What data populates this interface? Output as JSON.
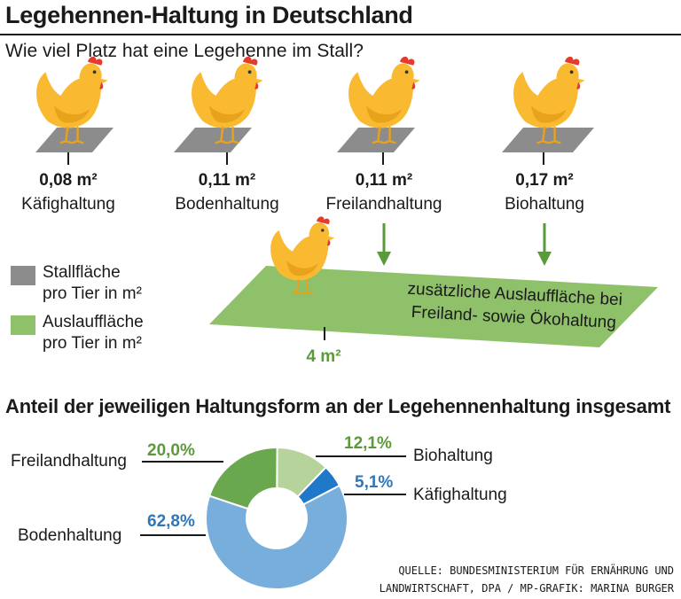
{
  "title": "Legehennen-Haltung in Deutschland",
  "subtitle": "Wie viel Platz hat eine Legehenne im Stall?",
  "husbandry": [
    {
      "area": "0,08 m²",
      "name": "Käfighaltung"
    },
    {
      "area": "0,11 m²",
      "name": "Bodenhaltung"
    },
    {
      "area": "0,11 m²",
      "name": "Freilandhaltung"
    },
    {
      "area": "0,17 m²",
      "name": "Biohaltung"
    }
  ],
  "outdoor": {
    "text_line1": "zusätzliche Auslauffläche bei",
    "text_line2": "Freiland- sowie Ökohaltung",
    "area": "4 m²"
  },
  "legend": [
    {
      "line1": "Stallfläche",
      "line2": "pro Tier in m²",
      "color": "#8c8c8c"
    },
    {
      "line1": "Auslauffläche",
      "line2": "pro Tier in m²",
      "color": "#8fc06a"
    }
  ],
  "section_title": "Anteil der jeweiligen Haltungsform an der Legehennenhaltung insgesamt",
  "chart_data": {
    "type": "pie",
    "title": "Anteil der jeweiligen Haltungsform an der Legehennenhaltung insgesamt",
    "unit": "%",
    "slices": [
      {
        "label": "Bodenhaltung",
        "value": 62.8,
        "display": "62,8%",
        "color": "#78aedc",
        "value_color": "#2e77bb"
      },
      {
        "label": "Freilandhaltung",
        "value": 20.0,
        "display": "20,0%",
        "color": "#6aa84f",
        "value_color": "#5b9a3b"
      },
      {
        "label": "Biohaltung",
        "value": 12.1,
        "display": "12,1%",
        "color": "#b5d39a",
        "value_color": "#5b9a3b"
      },
      {
        "label": "Käfighaltung",
        "value": 5.1,
        "display": "5,1%",
        "color": "#1f78c8",
        "value_color": "#2e77bb"
      }
    ]
  },
  "source": {
    "line1": "QUELLE: BUNDESMINISTERIUM FÜR ERNÄHRUNG UND",
    "line2": "LANDWIRTSCHAFT, DPA / MP-GRAFIK: MARINA BURGER"
  },
  "colors": {
    "hen": "#f9b930",
    "hen_shade": "#e8a21c",
    "comb": "#e53b2c",
    "stall": "#8c8c8c",
    "run": "#8fc06a",
    "arrow": "#5b9a3b",
    "green_text": "#5b9a3b"
  }
}
